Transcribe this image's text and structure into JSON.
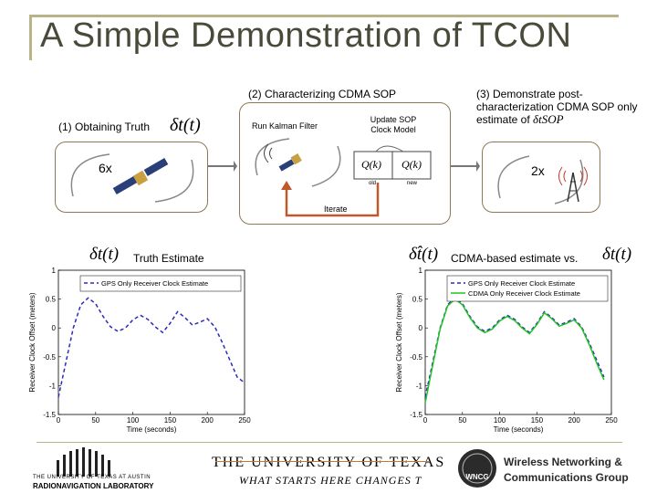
{
  "slide": {
    "title": "A Simple Demonstration of TCON"
  },
  "steps": {
    "step1_label": "(1) Obtaining Truth",
    "step1_symbol": "δt(t)",
    "step1_count": "6x",
    "step2_label": "(2) Characterizing CDMA SOP",
    "step2_kalman": "Run Kalman Filter",
    "step2_update": "Update SOP Clock Model",
    "step2_q_old": "Q(k)",
    "step2_q_new": "Q(k)",
    "step2_old": "old",
    "step2_new": "new",
    "step2_iterate": "Iterate",
    "step3_label": "(3) Demonstrate post-characterization CDMA SOP only estimate of",
    "step3_symbol": "δtSOP",
    "step3_count": "2x"
  },
  "left_plot": {
    "header_symbol": "δt(t)",
    "header_text": "Truth Estimate"
  },
  "right_plot": {
    "header_symbol": "δt̂(t)",
    "header_text": "CDMA-based estimate vs.",
    "header_symbol2": "δt(t)"
  },
  "chart_data": [
    {
      "type": "line",
      "title": "",
      "xlabel": "Time (seconds)",
      "ylabel": "Receiver Clock Offset (meters)",
      "xlim": [
        0,
        250
      ],
      "ylim": [
        -1.5,
        1
      ],
      "xticks": [
        "0",
        "50",
        "100",
        "150",
        "200",
        "250"
      ],
      "yticks": [
        "-1.5",
        "-1",
        "-0.5",
        "0",
        "0.5",
        "1"
      ],
      "legend": "top-right",
      "series": [
        {
          "name": "GPS Only Receiver Clock Estimate",
          "color": "#2a2ac0",
          "dash": true,
          "x": [
            0,
            10,
            20,
            30,
            40,
            50,
            60,
            70,
            80,
            90,
            100,
            110,
            120,
            130,
            140,
            150,
            160,
            170,
            180,
            190,
            200,
            210,
            220,
            230,
            240,
            250
          ],
          "y": [
            -1.2,
            -0.6,
            0.0,
            0.4,
            0.52,
            0.42,
            0.2,
            0.02,
            -0.06,
            0.0,
            0.14,
            0.22,
            0.15,
            0.02,
            -0.08,
            0.08,
            0.28,
            0.18,
            0.05,
            0.1,
            0.16,
            0.02,
            -0.25,
            -0.55,
            -0.85,
            -0.95
          ]
        }
      ]
    },
    {
      "type": "line",
      "title": "",
      "xlabel": "Time (seconds)",
      "ylabel": "Receiver Clock Offset (meters)",
      "xlim": [
        0,
        250
      ],
      "ylim": [
        -1.5,
        1
      ],
      "xticks": [
        "0",
        "50",
        "100",
        "150",
        "200",
        "250"
      ],
      "yticks": [
        "-1.5",
        "-1",
        "-0.5",
        "0",
        "0.5",
        "1"
      ],
      "legend": "top-right",
      "series": [
        {
          "name": "GPS Only Receiver Clock Estimate",
          "color": "#2a2ac0",
          "dash": true,
          "x": [
            0,
            10,
            20,
            30,
            40,
            50,
            60,
            70,
            80,
            90,
            100,
            110,
            120,
            130,
            140,
            150,
            160,
            170,
            180,
            190,
            200,
            210,
            220,
            230,
            240
          ],
          "y": [
            -1.2,
            -0.6,
            0.0,
            0.4,
            0.52,
            0.42,
            0.2,
            0.02,
            -0.06,
            0.0,
            0.14,
            0.22,
            0.15,
            0.02,
            -0.08,
            0.08,
            0.28,
            0.18,
            0.05,
            0.1,
            0.16,
            0.02,
            -0.25,
            -0.55,
            -0.85
          ]
        },
        {
          "name": "CDMA Only Receiver Clock Estimate",
          "color": "#22c322",
          "dash": false,
          "x": [
            0,
            10,
            20,
            30,
            40,
            50,
            60,
            70,
            80,
            90,
            100,
            110,
            120,
            130,
            140,
            150,
            160,
            170,
            180,
            190,
            200,
            210,
            220,
            230,
            240
          ],
          "y": [
            -1.3,
            -0.65,
            -0.02,
            0.38,
            0.5,
            0.4,
            0.18,
            0.0,
            -0.08,
            -0.02,
            0.12,
            0.2,
            0.13,
            0.0,
            -0.1,
            0.06,
            0.26,
            0.16,
            0.03,
            0.08,
            0.14,
            0.0,
            -0.28,
            -0.6,
            -0.9
          ]
        }
      ]
    }
  ],
  "footer": {
    "ut_line1": "THE UNIVERSITY OF TEXAS",
    "ut_line2": "WHAT STARTS HERE CHANGES T",
    "rnl_line1": "THE UNIVERSITY OF TEXAS AT AUSTIN",
    "rnl_line2": "RADIONAVIGATION LABORATORY",
    "wncg_badge": "WNCG",
    "wncg_line1": "Wireless Networking &",
    "wncg_line2": "Communications Group"
  },
  "colors": {
    "title": "#4a4a3a",
    "frame": "#b9b38a",
    "iterate_arrow": "#c0582a",
    "gps_series": "#2a2ac0",
    "cdma_series": "#22c322",
    "wncg_text": "#2a2a2a"
  }
}
